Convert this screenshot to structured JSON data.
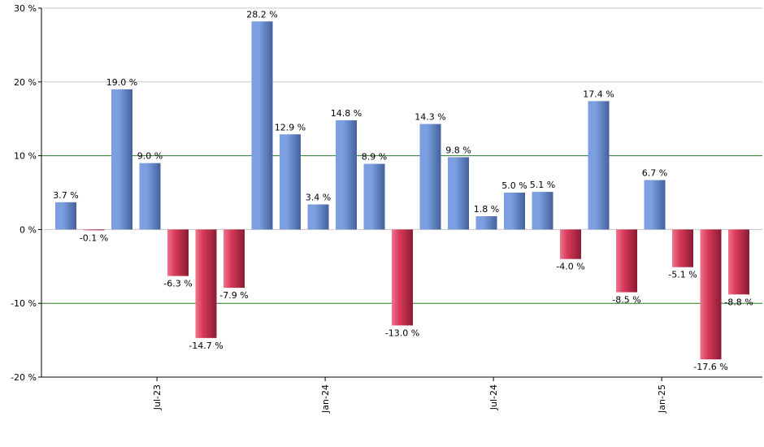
{
  "chart_data": {
    "type": "bar",
    "title": "",
    "xlabel": "",
    "ylabel": "",
    "ylim": [
      -20,
      30
    ],
    "y_ticks": [
      30,
      20,
      10,
      0,
      -10,
      -20
    ],
    "y_tick_labels": [
      "30 %",
      "20 %",
      "10 %",
      "0 %",
      "-10 %",
      "-20 %"
    ],
    "values": [
      3.7,
      -0.1,
      19.0,
      9.0,
      -6.3,
      -14.7,
      -7.9,
      28.2,
      12.9,
      3.4,
      14.8,
      8.9,
      -13.0,
      14.3,
      9.8,
      1.8,
      5.0,
      5.1,
      -4.0,
      17.4,
      -8.5,
      6.7,
      -5.1,
      -17.6,
      -8.8
    ],
    "value_labels": [
      "3.7 %",
      "-0.1 %",
      "19.0 %",
      "9.0 %",
      "-6.3 %",
      "-14.7 %",
      "-7.9 %",
      "28.2 %",
      "12.9 %",
      "3.4 %",
      "14.8 %",
      "8.9 %",
      "-13.0 %",
      "14.3 %",
      "9.8 %",
      "1.8 %",
      "5.0 %",
      "5.1 %",
      "-4.0 %",
      "17.4 %",
      "-8.5 %",
      "6.7 %",
      "-5.1 %",
      "-17.6 %",
      "-8.8 %"
    ],
    "x_ticks": [
      {
        "label": "Jul-23",
        "at_bar": 3.25
      },
      {
        "label": "Jan-24",
        "at_bar": 9.25
      },
      {
        "label": "Jul-24",
        "at_bar": 15.25
      },
      {
        "label": "Jan-25",
        "at_bar": 21.25
      }
    ],
    "reference_lines": [
      10,
      -10
    ],
    "colors": {
      "positive": "#7b9fe0",
      "positive_dark": "#44619b",
      "negative": "#d83a5a",
      "negative_dark": "#8a1b33",
      "reference_line": "#2a7a2a",
      "grid": "#c8c8c8",
      "axis": "#000000"
    },
    "grid": true
  }
}
